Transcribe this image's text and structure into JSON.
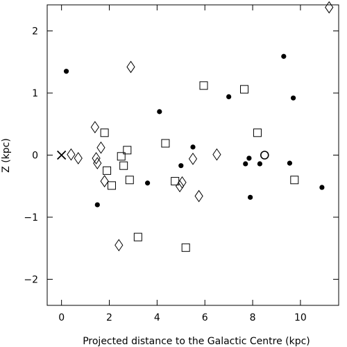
{
  "chart_data": {
    "type": "scatter",
    "xlabel": "Projected distance to the Galactic Centre (kpc)",
    "ylabel": "Z (kpc)",
    "xlim": [
      -0.6,
      11.6
    ],
    "ylim": [
      -2.42,
      2.42
    ],
    "x_ticks": [
      0,
      2,
      4,
      6,
      8,
      10
    ],
    "y_ticks": [
      -2,
      -1,
      0,
      1,
      2
    ],
    "y_tick_labels": [
      "−2",
      "−1",
      "0",
      "1",
      "2"
    ],
    "grid": false,
    "series": [
      {
        "marker": "filled-circle",
        "points": [
          [
            0.2,
            1.35
          ],
          [
            1.5,
            -0.8
          ],
          [
            3.6,
            -0.45
          ],
          [
            4.1,
            0.7
          ],
          [
            5.0,
            -0.17
          ],
          [
            5.5,
            0.13
          ],
          [
            7.0,
            0.94
          ],
          [
            7.7,
            -0.14
          ],
          [
            7.85,
            -0.05
          ],
          [
            7.9,
            -0.68
          ],
          [
            8.3,
            -0.14
          ],
          [
            9.3,
            1.59
          ],
          [
            9.55,
            -0.13
          ],
          [
            9.7,
            0.92
          ],
          [
            10.9,
            -0.52
          ]
        ]
      },
      {
        "marker": "open-square",
        "points": [
          [
            1.8,
            0.36
          ],
          [
            1.9,
            -0.25
          ],
          [
            2.1,
            -0.49
          ],
          [
            2.5,
            -0.02
          ],
          [
            2.6,
            -0.17
          ],
          [
            2.75,
            0.08
          ],
          [
            2.85,
            -0.4
          ],
          [
            3.2,
            -1.32
          ],
          [
            4.35,
            0.19
          ],
          [
            4.75,
            -0.42
          ],
          [
            5.2,
            -1.49
          ],
          [
            5.95,
            1.12
          ],
          [
            7.65,
            1.06
          ],
          [
            8.2,
            0.36
          ],
          [
            9.75,
            -0.4
          ]
        ]
      },
      {
        "marker": "open-diamond",
        "points": [
          [
            0.4,
            0.01
          ],
          [
            0.7,
            -0.05
          ],
          [
            1.4,
            0.45
          ],
          [
            1.45,
            -0.05
          ],
          [
            1.5,
            -0.13
          ],
          [
            1.65,
            0.12
          ],
          [
            1.8,
            -0.42
          ],
          [
            2.4,
            -1.45
          ],
          [
            2.9,
            1.42
          ],
          [
            4.95,
            -0.5
          ],
          [
            5.05,
            -0.44
          ],
          [
            5.5,
            -0.06
          ],
          [
            5.75,
            -0.66
          ],
          [
            6.5,
            0.01
          ],
          [
            11.2,
            2.38
          ]
        ]
      },
      {
        "marker": "open-circle",
        "points": [
          [
            8.5,
            0.0
          ]
        ]
      },
      {
        "marker": "cross",
        "points": [
          [
            0.0,
            0.0
          ]
        ]
      }
    ]
  }
}
